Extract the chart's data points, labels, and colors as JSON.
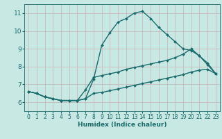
{
  "xlabel": "Humidex (Indice chaleur)",
  "ylabel": "",
  "xlim": [
    -0.5,
    23.5
  ],
  "ylim": [
    5.5,
    11.5
  ],
  "xticks": [
    0,
    1,
    2,
    3,
    4,
    5,
    6,
    7,
    8,
    9,
    10,
    11,
    12,
    13,
    14,
    15,
    16,
    17,
    18,
    19,
    20,
    21,
    22,
    23
  ],
  "yticks": [
    6,
    7,
    8,
    9,
    10,
    11
  ],
  "background_color": "#c8e8e4",
  "grid_color_major": "#c8b4b4",
  "grid_color_minor": "#c8b4b4",
  "line_color": "#1a6b6b",
  "line1_y": [
    6.6,
    6.5,
    6.3,
    6.2,
    6.1,
    6.1,
    6.1,
    6.2,
    7.3,
    9.2,
    9.9,
    10.5,
    10.7,
    11.0,
    11.1,
    10.7,
    10.2,
    9.8,
    9.4,
    9.0,
    8.9,
    8.6,
    8.2,
    7.6
  ],
  "line2_y": [
    6.6,
    6.5,
    6.3,
    6.2,
    6.1,
    6.1,
    6.1,
    6.7,
    7.4,
    7.5,
    7.6,
    7.7,
    7.85,
    7.95,
    8.05,
    8.15,
    8.25,
    8.35,
    8.5,
    8.7,
    9.0,
    8.6,
    8.1,
    7.6
  ],
  "line3_y": [
    6.6,
    6.5,
    6.3,
    6.2,
    6.1,
    6.1,
    6.1,
    6.2,
    6.5,
    6.55,
    6.65,
    6.75,
    6.85,
    6.95,
    7.05,
    7.15,
    7.25,
    7.35,
    7.45,
    7.55,
    7.7,
    7.8,
    7.85,
    7.6
  ],
  "marker": "D",
  "marker_size": 2.0,
  "line_width": 1.0
}
